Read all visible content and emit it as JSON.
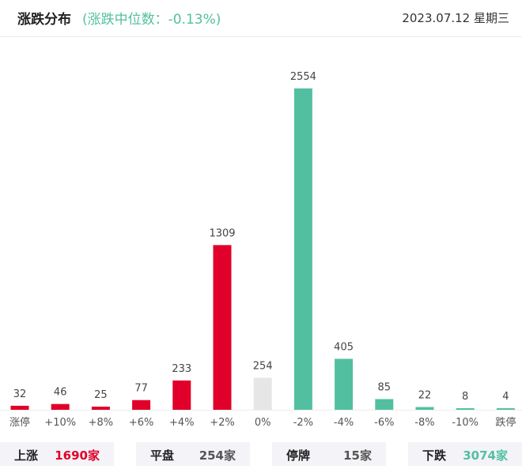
{
  "header": {
    "title": "涨跌分布",
    "median_text": "(涨跌中位数：-0.13%)",
    "date": "2023.07.12 星期三"
  },
  "colors": {
    "up": "#e0002a",
    "flat": "#e6e6e6",
    "down": "#52c0a0"
  },
  "chart_data": {
    "type": "bar",
    "title": "",
    "xlabel": "",
    "ylabel": "",
    "categories": [
      "涨停",
      "+10%",
      "+8%",
      "+6%",
      "+4%",
      "+2%",
      "0%",
      "-2%",
      "-4%",
      "-6%",
      "-8%",
      "-10%",
      "跌停"
    ],
    "values": [
      32,
      46,
      25,
      77,
      233,
      1309,
      254,
      2554,
      405,
      85,
      22,
      8,
      4
    ],
    "bar_color_group": [
      "up",
      "up",
      "up",
      "up",
      "up",
      "up",
      "flat",
      "down",
      "down",
      "down",
      "down",
      "down",
      "down"
    ],
    "ylim": [
      0,
      2554
    ],
    "grid": false,
    "legend": "none"
  },
  "summary": [
    {
      "label": "上涨",
      "value": "1690家",
      "color": "#e0002a"
    },
    {
      "label": "平盘",
      "value": "254家",
      "color": "#555555"
    },
    {
      "label": "停牌",
      "value": "15家",
      "color": "#555555"
    },
    {
      "label": "下跌",
      "value": "3074家",
      "color": "#52c0a0"
    }
  ]
}
